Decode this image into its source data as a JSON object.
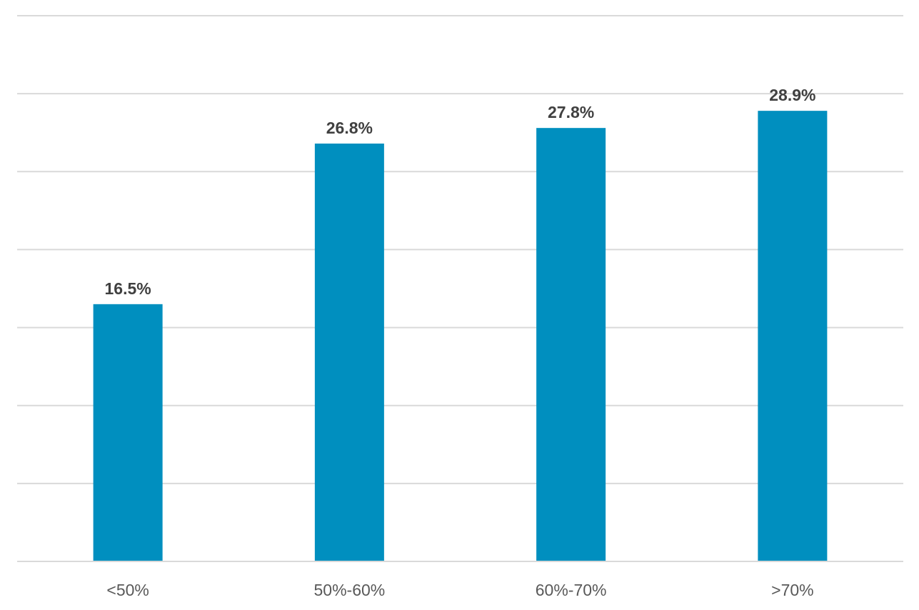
{
  "chart_data": {
    "type": "bar",
    "categories": [
      "<50%",
      "50%-60%",
      "60%-70%",
      ">70%"
    ],
    "series": [
      {
        "values": [
          16.5,
          26.8,
          27.8,
          28.9
        ],
        "labels": [
          "16.5%",
          "26.8%",
          "27.8%",
          "28.9%"
        ],
        "color": "#008fbf"
      }
    ],
    "title": "",
    "xlabel": "",
    "ylabel": "",
    "ylim": [
      0,
      35
    ],
    "gridline_step": 5,
    "y_tick_labels_shown": false,
    "grid": true,
    "legend": "none"
  }
}
